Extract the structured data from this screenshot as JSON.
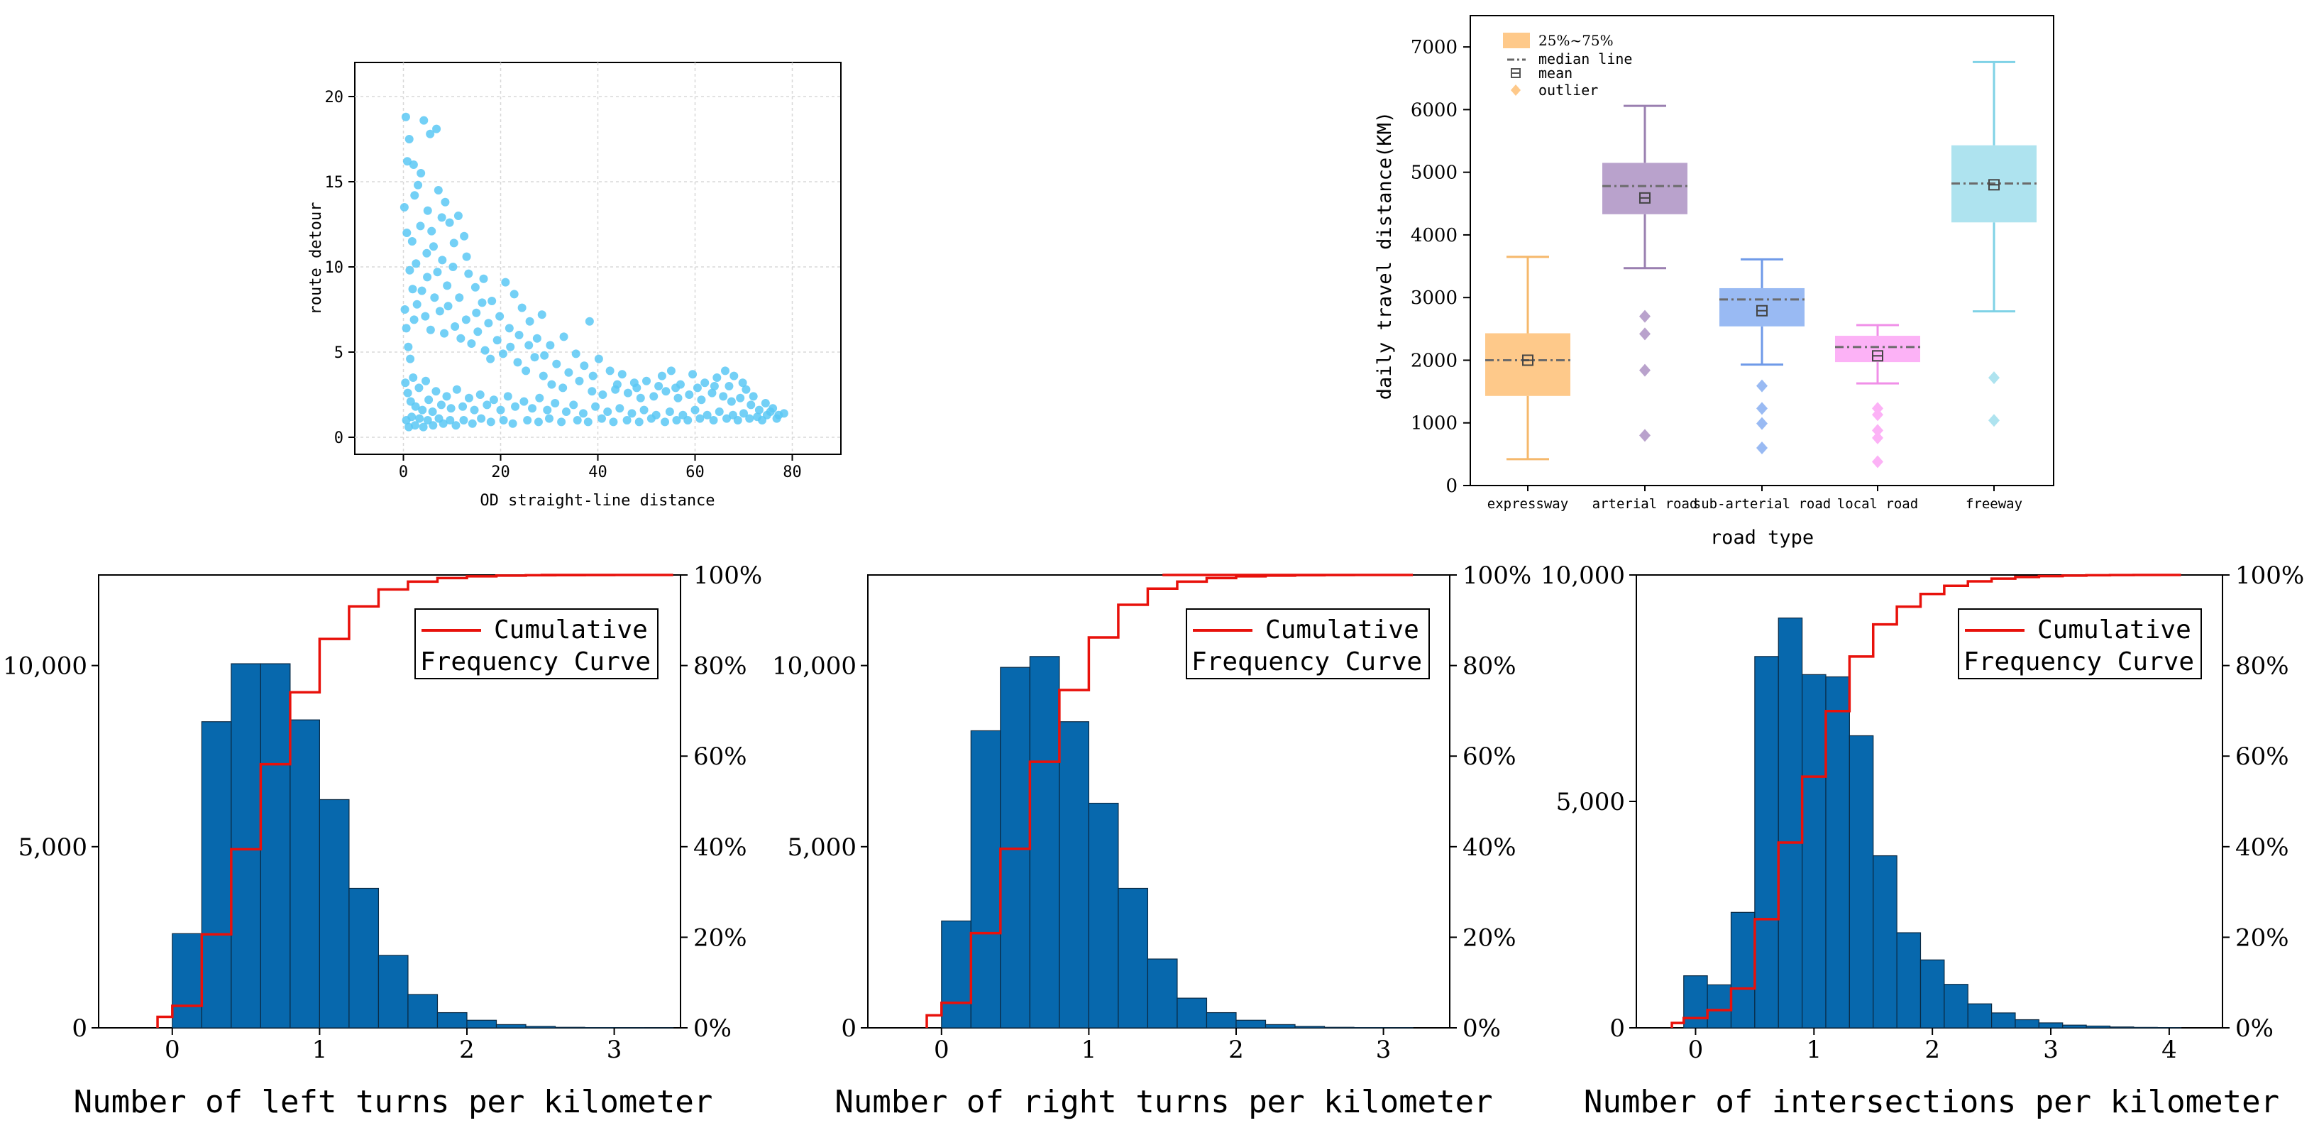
{
  "colors": {
    "scatter": "#5bc8f5",
    "bar": "#0768ad",
    "cdf": "#e8110b",
    "expressway": "#fec98a",
    "arterial": "#b9a2cc",
    "sub_arterial": "#99baf3",
    "local": "#fcb2f6",
    "freeway": "#aee3ef",
    "expressway_dark": "#f5b86b",
    "arterial_dark": "#9a7fb0",
    "sub_arterial_dark": "#6f9ae8",
    "local_dark": "#f08fe8",
    "freeway_dark": "#7fd2e6",
    "outlier": "#fec98a"
  },
  "chart_data": [
    {
      "id": "scatter",
      "type": "scatter",
      "title": "",
      "xlabel": "OD straight-line distance",
      "ylabel": "route detour",
      "xlim": [
        -10,
        90
      ],
      "ylim": [
        -1,
        22
      ],
      "xticks": [
        0,
        20,
        40,
        60,
        80
      ],
      "yticks": [
        0,
        5,
        10,
        15,
        20
      ],
      "grid": true,
      "points": [
        [
          0.5,
          18.8
        ],
        [
          0.8,
          16.2
        ],
        [
          1.2,
          17.5
        ],
        [
          2.1,
          16.0
        ],
        [
          3.0,
          14.8
        ],
        [
          4.2,
          18.6
        ],
        [
          5.5,
          17.8
        ],
        [
          6.8,
          18.1
        ],
        [
          3.5,
          12.4
        ],
        [
          5.0,
          13.3
        ],
        [
          7.2,
          14.5
        ],
        [
          8.6,
          13.8
        ],
        [
          9.5,
          12.6
        ],
        [
          11.3,
          13.0
        ],
        [
          12.5,
          11.8
        ],
        [
          1.8,
          11.5
        ],
        [
          2.6,
          10.2
        ],
        [
          4.8,
          10.8
        ],
        [
          6.2,
          11.2
        ],
        [
          8.0,
          10.4
        ],
        [
          10.2,
          10.0
        ],
        [
          13.4,
          9.6
        ],
        [
          14.8,
          8.8
        ],
        [
          16.5,
          9.3
        ],
        [
          18.2,
          8.0
        ],
        [
          21.0,
          9.1
        ],
        [
          22.8,
          8.4
        ],
        [
          24.4,
          7.6
        ],
        [
          26.0,
          6.8
        ],
        [
          28.5,
          7.2
        ],
        [
          38.3,
          6.8
        ],
        [
          30.2,
          5.4
        ],
        [
          33.0,
          5.9
        ],
        [
          35.5,
          4.9
        ],
        [
          31.5,
          4.3
        ],
        [
          34.0,
          3.8
        ],
        [
          40.2,
          4.6
        ],
        [
          42.5,
          3.9
        ],
        [
          45.0,
          3.7
        ],
        [
          47.5,
          3.2
        ],
        [
          50.0,
          3.3
        ],
        [
          53.2,
          3.6
        ],
        [
          55.1,
          3.9
        ],
        [
          57.0,
          3.1
        ],
        [
          59.5,
          3.7
        ],
        [
          62.0,
          3.2
        ],
        [
          64.5,
          3.5
        ],
        [
          66.2,
          3.9
        ],
        [
          68.0,
          3.6
        ],
        [
          70.5,
          2.8
        ],
        [
          72.0,
          2.4
        ],
        [
          74.5,
          2.0
        ],
        [
          76.0,
          1.7
        ],
        [
          78.3,
          1.4
        ],
        [
          0.3,
          7.5
        ],
        [
          0.6,
          6.4
        ],
        [
          1.0,
          5.3
        ],
        [
          1.4,
          4.6
        ],
        [
          2.2,
          6.9
        ],
        [
          2.8,
          7.8
        ],
        [
          3.8,
          8.6
        ],
        [
          4.5,
          7.1
        ],
        [
          5.6,
          6.3
        ],
        [
          6.4,
          8.2
        ],
        [
          7.5,
          7.4
        ],
        [
          8.4,
          6.1
        ],
        [
          9.2,
          7.7
        ],
        [
          10.6,
          6.5
        ],
        [
          11.8,
          5.8
        ],
        [
          12.9,
          6.9
        ],
        [
          14.0,
          5.5
        ],
        [
          15.3,
          6.2
        ],
        [
          16.8,
          5.1
        ],
        [
          17.9,
          4.6
        ],
        [
          19.3,
          5.7
        ],
        [
          20.5,
          4.9
        ],
        [
          22.0,
          5.3
        ],
        [
          23.5,
          4.4
        ],
        [
          25.2,
          3.9
        ],
        [
          27.0,
          4.7
        ],
        [
          28.8,
          3.6
        ],
        [
          30.5,
          3.1
        ],
        [
          32.8,
          2.9
        ],
        [
          36.2,
          3.3
        ],
        [
          38.8,
          2.7
        ],
        [
          41.0,
          2.5
        ],
        [
          43.6,
          2.8
        ],
        [
          46.2,
          2.6
        ],
        [
          48.8,
          2.3
        ],
        [
          51.5,
          2.4
        ],
        [
          54.0,
          2.7
        ],
        [
          56.5,
          2.3
        ],
        [
          58.8,
          2.5
        ],
        [
          61.3,
          2.2
        ],
        [
          63.5,
          2.6
        ],
        [
          65.8,
          2.4
        ],
        [
          67.5,
          2.1
        ],
        [
          69.3,
          2.3
        ],
        [
          71.5,
          1.9
        ],
        [
          73.2,
          1.6
        ],
        [
          75.5,
          1.5
        ],
        [
          77.2,
          1.3
        ],
        [
          0.4,
          3.2
        ],
        [
          0.9,
          2.6
        ],
        [
          1.5,
          2.1
        ],
        [
          2.0,
          3.5
        ],
        [
          2.5,
          1.8
        ],
        [
          3.2,
          2.9
        ],
        [
          3.9,
          1.6
        ],
        [
          4.6,
          3.3
        ],
        [
          5.2,
          2.2
        ],
        [
          6.0,
          1.5
        ],
        [
          6.7,
          2.7
        ],
        [
          7.8,
          1.9
        ],
        [
          8.9,
          2.4
        ],
        [
          9.8,
          1.7
        ],
        [
          11.0,
          2.8
        ],
        [
          12.2,
          1.8
        ],
        [
          13.5,
          2.3
        ],
        [
          14.6,
          1.6
        ],
        [
          15.8,
          2.5
        ],
        [
          17.2,
          1.9
        ],
        [
          18.6,
          2.2
        ],
        [
          20.0,
          1.6
        ],
        [
          21.5,
          2.4
        ],
        [
          23.0,
          1.8
        ],
        [
          24.8,
          2.1
        ],
        [
          26.5,
          1.7
        ],
        [
          28.0,
          2.3
        ],
        [
          29.6,
          1.6
        ],
        [
          31.2,
          2.0
        ],
        [
          33.5,
          1.5
        ],
        [
          35.0,
          1.9
        ],
        [
          37.0,
          1.4
        ],
        [
          39.5,
          1.8
        ],
        [
          42.0,
          1.5
        ],
        [
          44.5,
          1.7
        ],
        [
          47.0,
          1.4
        ],
        [
          49.5,
          1.6
        ],
        [
          52.0,
          1.3
        ],
        [
          54.8,
          1.5
        ],
        [
          57.5,
          1.3
        ],
        [
          60.0,
          1.6
        ],
        [
          62.5,
          1.3
        ],
        [
          65.0,
          1.5
        ],
        [
          67.8,
          1.3
        ],
        [
          70.0,
          1.4
        ],
        [
          72.8,
          1.2
        ],
        [
          74.8,
          1.3
        ],
        [
          76.8,
          1.1
        ],
        [
          0.6,
          1.0
        ],
        [
          1.1,
          0.6
        ],
        [
          1.7,
          1.2
        ],
        [
          2.4,
          0.7
        ],
        [
          3.3,
          1.1
        ],
        [
          4.1,
          0.6
        ],
        [
          5.0,
          1.0
        ],
        [
          6.1,
          0.7
        ],
        [
          7.3,
          1.1
        ],
        [
          8.2,
          0.8
        ],
        [
          9.6,
          1.0
        ],
        [
          10.8,
          0.7
        ],
        [
          12.4,
          1.0
        ],
        [
          14.2,
          0.8
        ],
        [
          16.0,
          1.1
        ],
        [
          18.0,
          0.9
        ],
        [
          20.6,
          1.0
        ],
        [
          22.5,
          0.8
        ],
        [
          25.5,
          1.0
        ],
        [
          27.8,
          0.9
        ],
        [
          30.0,
          1.1
        ],
        [
          32.5,
          0.9
        ],
        [
          35.8,
          1.0
        ],
        [
          38.0,
          0.9
        ],
        [
          40.8,
          1.1
        ],
        [
          43.2,
          0.9
        ],
        [
          46.0,
          1.0
        ],
        [
          48.5,
          0.9
        ],
        [
          51.0,
          1.1
        ],
        [
          53.8,
          0.9
        ],
        [
          56.2,
          1.0
        ],
        [
          58.5,
          1.0
        ],
        [
          61.0,
          1.1
        ],
        [
          63.8,
          1.0
        ],
        [
          66.5,
          1.1
        ],
        [
          68.8,
          1.0
        ],
        [
          71.2,
          1.1
        ],
        [
          73.8,
          1.0
        ],
        [
          0.2,
          13.5
        ],
        [
          0.7,
          12.0
        ],
        [
          1.3,
          9.8
        ],
        [
          1.9,
          8.7
        ],
        [
          2.3,
          14.2
        ],
        [
          3.6,
          15.5
        ],
        [
          4.9,
          9.4
        ],
        [
          5.8,
          12.1
        ],
        [
          7.0,
          9.7
        ],
        [
          7.9,
          12.9
        ],
        [
          9.0,
          8.9
        ],
        [
          10.4,
          11.4
        ],
        [
          11.5,
          8.2
        ],
        [
          13.0,
          10.6
        ],
        [
          15.0,
          7.3
        ],
        [
          16.2,
          7.9
        ],
        [
          17.5,
          6.7
        ],
        [
          19.8,
          7.1
        ],
        [
          21.8,
          6.4
        ],
        [
          23.8,
          6.0
        ],
        [
          25.8,
          5.4
        ],
        [
          27.5,
          5.8
        ],
        [
          29.0,
          4.8
        ],
        [
          37.2,
          4.2
        ],
        [
          39.0,
          3.6
        ],
        [
          44.0,
          3.1
        ],
        [
          48.0,
          2.9
        ],
        [
          52.5,
          3.0
        ],
        [
          56.0,
          2.9
        ],
        [
          60.5,
          2.9
        ],
        [
          64.0,
          3.0
        ],
        [
          67.0,
          3.0
        ],
        [
          69.8,
          3.2
        ]
      ]
    },
    {
      "id": "boxplot",
      "type": "box",
      "title": "",
      "xlabel": "road type",
      "ylabel": "daily travel distance(KM)",
      "ylim": [
        0,
        7500
      ],
      "yticks": [
        0,
        1000,
        2000,
        3000,
        4000,
        5000,
        6000,
        7000
      ],
      "legend": {
        "position": "top-left",
        "entries": [
          "25%~75%",
          "median line",
          "mean",
          "outlier"
        ]
      },
      "series": [
        {
          "name": "expressway",
          "whisker_low": 420,
          "q1": 1430,
          "median": 2000,
          "q3": 2430,
          "whisker_high": 3650,
          "mean": 2000,
          "outliers": []
        },
        {
          "name": "arterial road",
          "whisker_low": 3470,
          "q1": 4330,
          "median": 4780,
          "q3": 5150,
          "whisker_high": 6060,
          "mean": 4590,
          "outliers": [
            2700,
            2420,
            1840,
            800
          ]
        },
        {
          "name": "sub-arterial road",
          "whisker_low": 1930,
          "q1": 2540,
          "median": 2970,
          "q3": 3150,
          "whisker_high": 3610,
          "mean": 2790,
          "outliers": [
            1590,
            1230,
            990,
            600
          ]
        },
        {
          "name": "local road",
          "whisker_low": 1630,
          "q1": 1970,
          "median": 2210,
          "q3": 2390,
          "whisker_high": 2560,
          "mean": 2070,
          "outliers": [
            1230,
            1130,
            880,
            760,
            380
          ]
        },
        {
          "name": "freeway",
          "whisker_low": 2780,
          "q1": 4200,
          "median": 4820,
          "q3": 5430,
          "whisker_high": 6760,
          "mean": 4800,
          "outliers": [
            1720,
            1040
          ]
        }
      ]
    },
    {
      "id": "hist-left",
      "type": "bar",
      "title": "",
      "xlabel": "Number of left turns per kilometer",
      "ylabel": "",
      "xlim": [
        -0.5,
        3.45
      ],
      "ylim": [
        0,
        12500
      ],
      "xticks": [
        0,
        1,
        2,
        3
      ],
      "yticks": [
        0,
        5000,
        10000
      ],
      "ytick_labels": [
        "0",
        "5,000",
        "10,000"
      ],
      "y2ticks": [
        "0%",
        "20%",
        "40%",
        "60%",
        "80%",
        "100%"
      ],
      "bin_width": 0.2,
      "bin_start": 0,
      "values": [
        2600,
        8450,
        10050,
        10050,
        8500,
        6300,
        3850,
        2000,
        920,
        420,
        210,
        90,
        40,
        15,
        8,
        5,
        3
      ],
      "cumulative": {
        "x0": -0.1,
        "x_end": 2.5,
        "legend": [
          "Cumulative",
          "Frequency Curve"
        ]
      }
    },
    {
      "id": "hist-right",
      "type": "bar",
      "title": "",
      "xlabel": "Number of right turns per kilometer",
      "ylabel": "",
      "xlim": [
        -0.5,
        3.45
      ],
      "ylim": [
        0,
        12500
      ],
      "xticks": [
        0,
        1,
        2,
        3
      ],
      "yticks": [
        0,
        5000,
        10000
      ],
      "ytick_labels": [
        "0",
        "5,000",
        "10,000"
      ],
      "y2ticks": [
        "0%",
        "20%",
        "40%",
        "60%",
        "80%",
        "100%"
      ],
      "bin_width": 0.2,
      "bin_start": 0,
      "values": [
        2950,
        8200,
        9950,
        10250,
        8450,
        6200,
        3850,
        1900,
        820,
        420,
        210,
        90,
        40,
        15,
        8,
        5
      ],
      "cumulative": {
        "x0": -0.1,
        "x_end": 1.5,
        "legend": [
          "Cumulative",
          "Frequency Curve"
        ]
      }
    },
    {
      "id": "hist-intersections",
      "type": "bar",
      "title": "",
      "xlabel": "Number of intersections per kilometer",
      "ylabel": "",
      "xlim": [
        -0.5,
        4.45
      ],
      "ylim": [
        0,
        10000
      ],
      "xticks": [
        0,
        1,
        2,
        3,
        4
      ],
      "yticks": [
        0,
        5000,
        10000
      ],
      "ytick_labels": [
        "0",
        "5,000",
        "10,000"
      ],
      "y2ticks": [
        "0%",
        "20%",
        "40%",
        "60%",
        "80%",
        "100%"
      ],
      "bin_width": 0.2,
      "bin_start": -0.1,
      "values": [
        1150,
        950,
        2550,
        8200,
        9050,
        7800,
        7750,
        6450,
        3800,
        2100,
        1500,
        960,
        530,
        330,
        180,
        110,
        60,
        40,
        20,
        10,
        5
      ],
      "cumulative": {
        "x0": -0.2,
        "x_end": 3.7,
        "legend": [
          "Cumulative",
          "Frequency Curve"
        ]
      }
    }
  ]
}
